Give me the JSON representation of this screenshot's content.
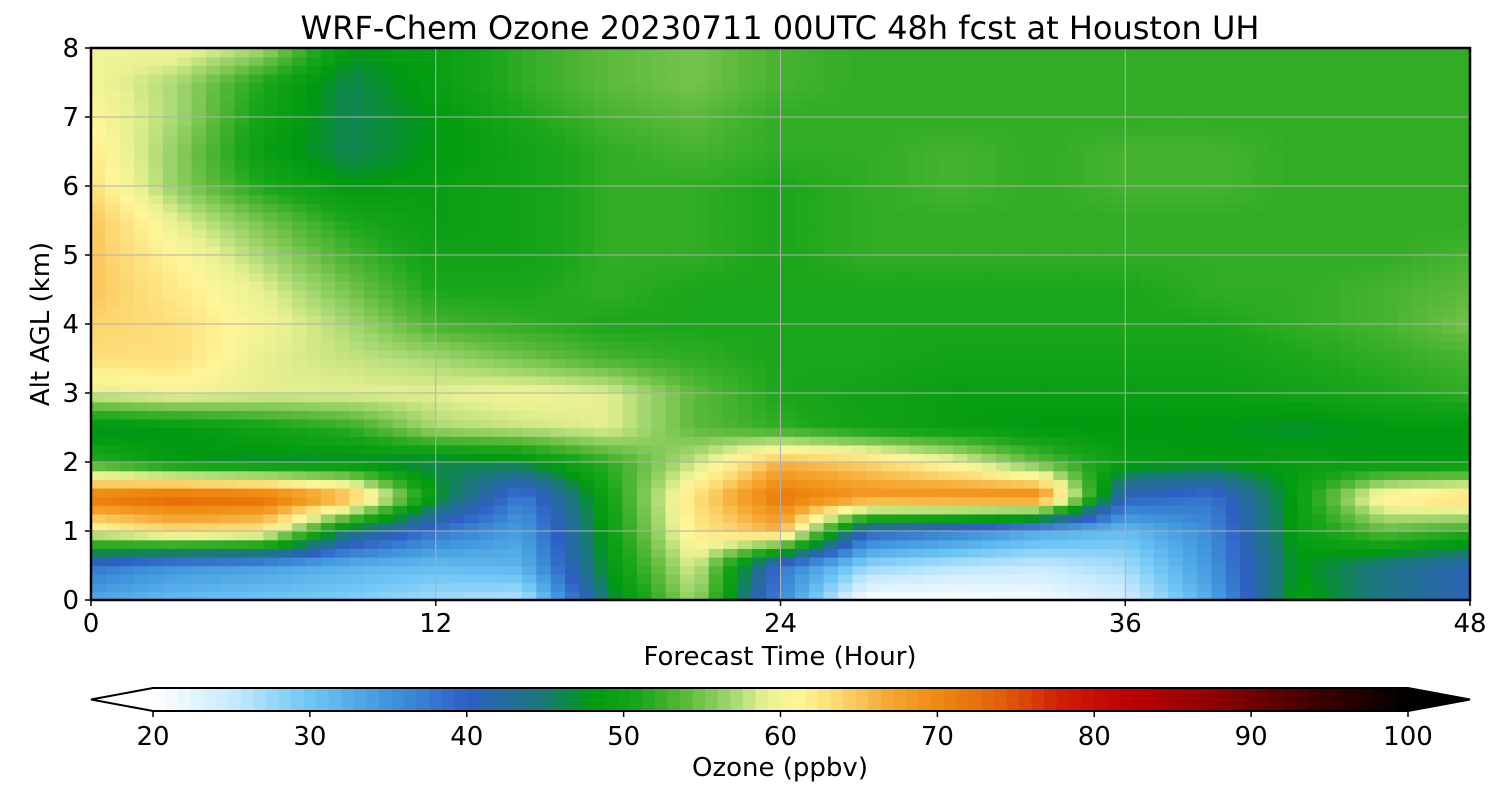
{
  "chart_data": {
    "type": "heatmap",
    "title": "WRF-Chem Ozone  20230711 00UTC 48h fcst at Houston UH",
    "xlabel": "Forecast Time (Hour)",
    "ylabel": "Alt AGL (km)",
    "xlim": [
      0,
      48
    ],
    "ylim": [
      0,
      8
    ],
    "x_ticks": [
      0,
      12,
      24,
      36,
      48
    ],
    "y_ticks": [
      0,
      1,
      2,
      3,
      4,
      5,
      6,
      7,
      8
    ],
    "grid": true,
    "x": [
      0,
      3,
      6,
      9,
      12,
      15,
      18,
      21,
      24,
      27,
      30,
      33,
      36,
      39,
      42,
      45,
      48
    ],
    "y": [
      0,
      0.5,
      1,
      1.5,
      2,
      2.5,
      3,
      3.5,
      4,
      4.5,
      5,
      5.5,
      6,
      6.5,
      7,
      7.5,
      8
    ],
    "z": [
      [
        33,
        31,
        30,
        29,
        27,
        26,
        46,
        57,
        36,
        20,
        20,
        21,
        24,
        33,
        49,
        44,
        41
      ],
      [
        38,
        35,
        34,
        32,
        31,
        32,
        48,
        59,
        38,
        28,
        26,
        25,
        27,
        35,
        48,
        44,
        41
      ],
      [
        60,
        63,
        62,
        45,
        38,
        34,
        49,
        62,
        66,
        40,
        37,
        33,
        31,
        36,
        49,
        54,
        52
      ],
      [
        72,
        74,
        73,
        67,
        48,
        37,
        50,
        63,
        72,
        69,
        70,
        71,
        40,
        38,
        49,
        62,
        64
      ],
      [
        52,
        48,
        47,
        47,
        46,
        47,
        52,
        58,
        66,
        64,
        60,
        54,
        49,
        48,
        49,
        48,
        48
      ],
      [
        47,
        48,
        50,
        52,
        57,
        58,
        59,
        54,
        52,
        50,
        49,
        48,
        48,
        48,
        47,
        48,
        48
      ],
      [
        59,
        60,
        59,
        59,
        59,
        60,
        59,
        54,
        51,
        50,
        49,
        49,
        49,
        49,
        50,
        51,
        52
      ],
      [
        63,
        63,
        59,
        58,
        57,
        55,
        53,
        52,
        51,
        51,
        50,
        50,
        50,
        50,
        51,
        52,
        53
      ],
      [
        64,
        63,
        60,
        57,
        53,
        52,
        51,
        51,
        51,
        51,
        51,
        51,
        51,
        51,
        52,
        53,
        55
      ],
      [
        65,
        62,
        59,
        55,
        51,
        51,
        52,
        51,
        51,
        51,
        51,
        51,
        51,
        52,
        52,
        53,
        54
      ],
      [
        65,
        61,
        57,
        53,
        50,
        50,
        52,
        52,
        51,
        52,
        52,
        52,
        52,
        52,
        52,
        52,
        53
      ],
      [
        65,
        59,
        55,
        51,
        49,
        50,
        52,
        52,
        51,
        52,
        52,
        52,
        52,
        52,
        52,
        52,
        52
      ],
      [
        63,
        56,
        51,
        48,
        49,
        50,
        52,
        52,
        51,
        52,
        53,
        52,
        53,
        53,
        52,
        52,
        52
      ],
      [
        62,
        56,
        49,
        46,
        48,
        50,
        52,
        53,
        52,
        52,
        53,
        52,
        53,
        53,
        52,
        52,
        52
      ],
      [
        61,
        57,
        50,
        46,
        48,
        51,
        53,
        54,
        52,
        52,
        52,
        52,
        52,
        52,
        52,
        52,
        52
      ],
      [
        60,
        57,
        51,
        46,
        49,
        52,
        54,
        55,
        53,
        52,
        52,
        52,
        52,
        52,
        52,
        52,
        52
      ],
      [
        60,
        60,
        57,
        48,
        49,
        52,
        54,
        55,
        53,
        52,
        52,
        52,
        52,
        52,
        52,
        52,
        52
      ]
    ],
    "colorbar": {
      "label": "Ozone  (ppbv)",
      "min": 20,
      "max": 100,
      "ticks": [
        20,
        30,
        40,
        50,
        60,
        70,
        80,
        90,
        100
      ],
      "extend": "both",
      "colormap": [
        [
          20,
          "#ffffff"
        ],
        [
          25,
          "#c8eaff"
        ],
        [
          30,
          "#6ec6f5"
        ],
        [
          35,
          "#3f96dc"
        ],
        [
          40,
          "#2f5fc4"
        ],
        [
          45,
          "#1a7a78"
        ],
        [
          48,
          "#009a10"
        ],
        [
          51,
          "#1aa61a"
        ],
        [
          54,
          "#5cba3a"
        ],
        [
          57,
          "#a6d872"
        ],
        [
          59,
          "#e6f090"
        ],
        [
          61,
          "#fff699"
        ],
        [
          64,
          "#fcd46c"
        ],
        [
          67,
          "#f5a630"
        ],
        [
          70,
          "#ef8a10"
        ],
        [
          74,
          "#e26006"
        ],
        [
          78,
          "#d01c04"
        ],
        [
          82,
          "#c00000"
        ],
        [
          88,
          "#8a0000"
        ],
        [
          94,
          "#400000"
        ],
        [
          100,
          "#000000"
        ]
      ]
    }
  }
}
